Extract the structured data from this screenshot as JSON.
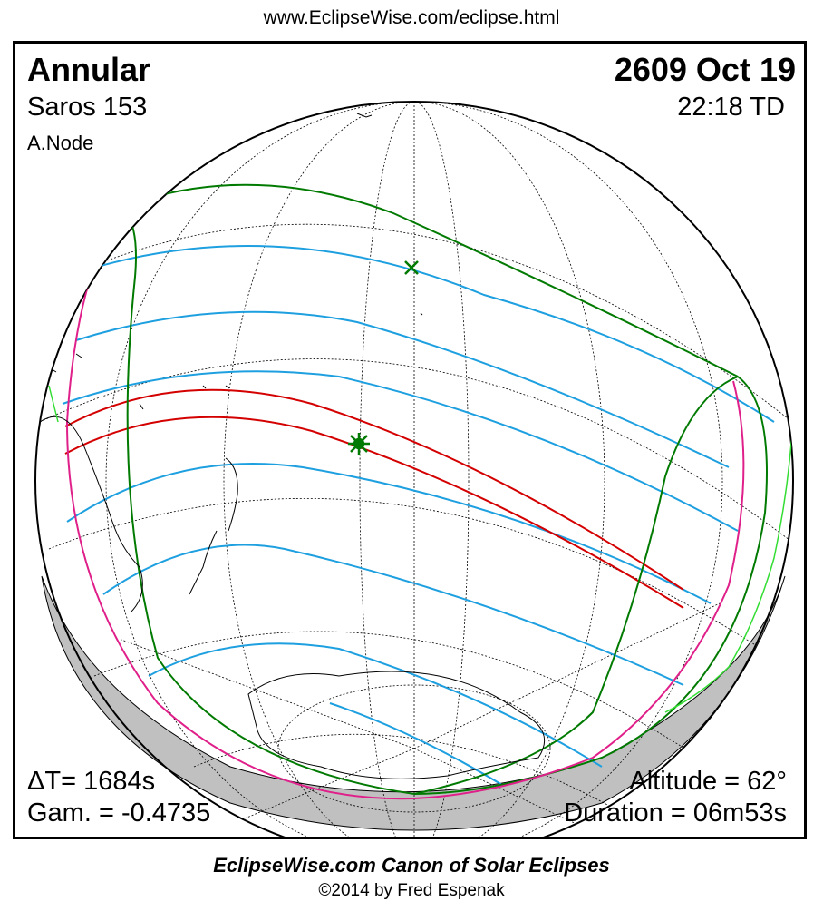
{
  "header_url": "www.EclipseWise.com/eclipse.html",
  "eclipse": {
    "type": "Annular",
    "date": "2609 Oct 19",
    "saros": "Saros 153",
    "time": "22:18 TD",
    "node": "A.Node",
    "delta_t": "ΔT=   1684s",
    "gamma": "Gam. = -0.4735",
    "altitude": "Altitude = 62°",
    "duration": "Duration = 06m53s"
  },
  "footer": {
    "title": "EclipseWise.com Canon of Solar Eclipses",
    "copyright": "©2014 by Fred Espenak"
  },
  "colors": {
    "central_path": "#d40000",
    "penumbral_lines": "#1ea0e0",
    "limits": "#007a00",
    "rise_set": "#e0208a",
    "night_shade": "#c0c0c0",
    "coast": "#000000",
    "sunset_coast": "#33dd33"
  },
  "markers": {
    "greatest_eclipse": "asterisk-marker",
    "subsolar_point": "x-marker"
  }
}
